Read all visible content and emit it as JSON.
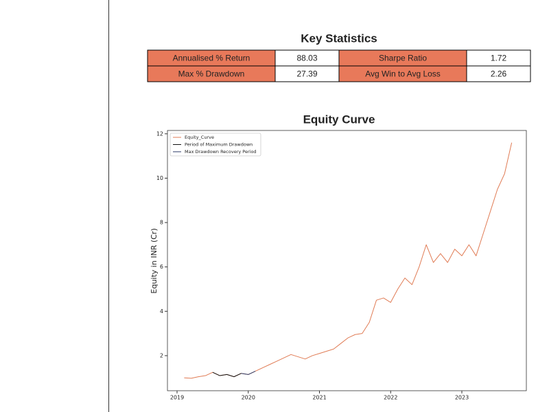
{
  "statistics": {
    "title": "Key Statistics",
    "rows": [
      [
        "Annualised % Return",
        88.03,
        "Sharpe Ratio",
        1.72
      ],
      [
        "Max % Drawdown",
        27.39,
        "Avg Win to Avg Loss",
        2.26
      ]
    ]
  },
  "chart_data": {
    "type": "line",
    "title": "Equity Curve",
    "y_label": "Equity in INR (Cr)",
    "x": [
      2019.1,
      2019.2,
      2019.3,
      2019.4,
      2019.5,
      2019.6,
      2019.7,
      2019.8,
      2019.9,
      2020.0,
      2020.1,
      2020.2,
      2020.3,
      2020.4,
      2020.5,
      2020.6,
      2020.7,
      2020.8,
      2020.9,
      2021.0,
      2021.1,
      2021.2,
      2021.3,
      2021.4,
      2021.5,
      2021.6,
      2021.7,
      2021.8,
      2021.9,
      2022.0,
      2022.1,
      2022.2,
      2022.3,
      2022.4,
      2022.5,
      2022.6,
      2022.7,
      2022.8,
      2022.9,
      2023.0,
      2023.1,
      2023.2,
      2023.3,
      2023.4,
      2023.5,
      2023.6,
      2023.7
    ],
    "series": [
      {
        "name": "Equity_Curve",
        "color": "#e07b54",
        "values": [
          1.0,
          0.98,
          1.05,
          1.1,
          1.25,
          1.1,
          1.15,
          1.05,
          1.2,
          1.15,
          1.3,
          1.45,
          1.6,
          1.75,
          1.9,
          2.05,
          1.95,
          1.85,
          2.0,
          2.1,
          2.2,
          2.3,
          2.55,
          2.8,
          2.95,
          3.0,
          3.5,
          4.5,
          4.6,
          4.4,
          5.0,
          5.5,
          5.2,
          6.0,
          7.0,
          6.2,
          6.6,
          6.2,
          6.8,
          6.5,
          7.0,
          6.5,
          7.5,
          8.5,
          9.5,
          10.2,
          11.6
        ]
      },
      {
        "name": "Period of Maximum Drawdown",
        "color": "#111111",
        "values": [
          null,
          null,
          null,
          null,
          1.25,
          1.1,
          1.15,
          1.05,
          1.2,
          null,
          null,
          null,
          null,
          null,
          null,
          null,
          null,
          null,
          null,
          null,
          null,
          null,
          null,
          null,
          null,
          null,
          null,
          null,
          null,
          null,
          null,
          null,
          null,
          null,
          null,
          null,
          null,
          null,
          null,
          null,
          null,
          null,
          null,
          null,
          null,
          null,
          null
        ]
      },
      {
        "name": "Max Drawdown Recovery Period",
        "color": "#2b3a67",
        "values": [
          null,
          null,
          null,
          null,
          null,
          null,
          null,
          null,
          1.2,
          1.15,
          1.3,
          null,
          null,
          null,
          null,
          null,
          null,
          null,
          null,
          null,
          null,
          null,
          null,
          null,
          null,
          null,
          null,
          null,
          null,
          null,
          null,
          null,
          null,
          null,
          null,
          null,
          null,
          null,
          null,
          null,
          null,
          null,
          null,
          null,
          null,
          null,
          null
        ]
      }
    ],
    "xlim": [
      2018.865,
      2023.906
    ],
    "xticks": [
      2019,
      2020,
      2021,
      2022,
      2023
    ],
    "ylim": [
      0.42,
      12.15
    ],
    "yticks": [
      2,
      4,
      6,
      8,
      10,
      12
    ],
    "grid": false,
    "legend": "upper left"
  }
}
